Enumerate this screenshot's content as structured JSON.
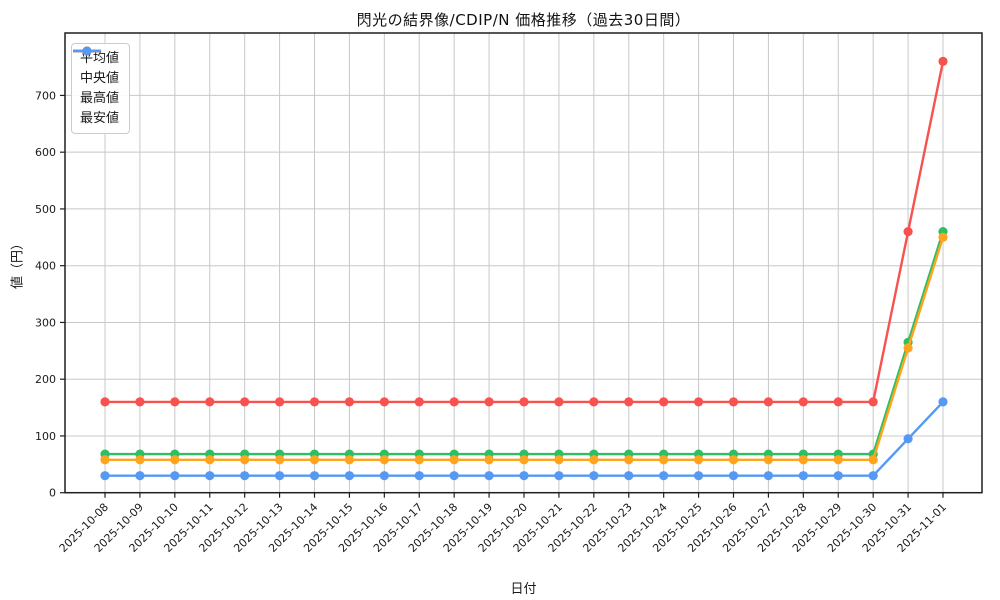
{
  "chart_data": {
    "type": "line",
    "title": "閃光の結界像/CDIP/N 価格推移（過去30日間）",
    "xlabel": "日付",
    "ylabel": "値（円）",
    "categories": [
      "2025-10-08",
      "2025-10-09",
      "2025-10-10",
      "2025-10-11",
      "2025-10-12",
      "2025-10-13",
      "2025-10-14",
      "2025-10-15",
      "2025-10-16",
      "2025-10-17",
      "2025-10-18",
      "2025-10-19",
      "2025-10-20",
      "2025-10-21",
      "2025-10-22",
      "2025-10-23",
      "2025-10-24",
      "2025-10-25",
      "2025-10-26",
      "2025-10-27",
      "2025-10-28",
      "2025-10-29",
      "2025-10-30",
      "2025-10-31",
      "2025-11-01"
    ],
    "series": [
      {
        "name": "平均値",
        "color": "#2fbe63",
        "values": [
          68,
          68,
          68,
          68,
          68,
          68,
          68,
          68,
          68,
          68,
          68,
          68,
          68,
          68,
          68,
          68,
          68,
          68,
          68,
          68,
          68,
          68,
          68,
          265,
          460
        ]
      },
      {
        "name": "中央値",
        "color": "#ffa41c",
        "values": [
          58,
          58,
          58,
          58,
          58,
          58,
          58,
          58,
          58,
          58,
          58,
          58,
          58,
          58,
          58,
          58,
          58,
          58,
          58,
          58,
          58,
          58,
          58,
          255,
          450
        ]
      },
      {
        "name": "最高値",
        "color": "#f8524f",
        "values": [
          160,
          160,
          160,
          160,
          160,
          160,
          160,
          160,
          160,
          160,
          160,
          160,
          160,
          160,
          160,
          160,
          160,
          160,
          160,
          160,
          160,
          160,
          160,
          460,
          760
        ]
      },
      {
        "name": "最安値",
        "color": "#5599f2",
        "values": [
          30,
          30,
          30,
          30,
          30,
          30,
          30,
          30,
          30,
          30,
          30,
          30,
          30,
          30,
          30,
          30,
          30,
          30,
          30,
          30,
          30,
          30,
          30,
          95,
          160
        ]
      }
    ],
    "ylim": [
      0,
      810
    ],
    "yticks": [
      0,
      100,
      200,
      300,
      400,
      500,
      600,
      700
    ],
    "grid": true,
    "legend_position": "upper left",
    "colors": {
      "grid": "#c8c8c8",
      "spine": "#1f1f1f",
      "tick_label": "#1a1a1a",
      "background": "#ffffff"
    }
  }
}
